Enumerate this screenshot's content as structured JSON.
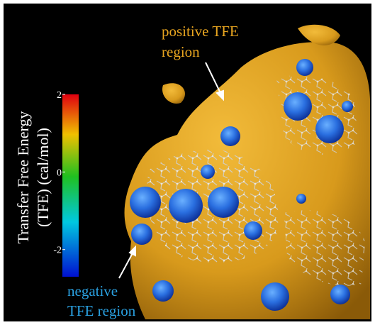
{
  "colorbar": {
    "title_lines": [
      "Transfer Free Energy",
      "(TFE) (cal/mol)"
    ],
    "lim": [
      -2.7,
      2
    ],
    "ticks": [
      2,
      0,
      -2
    ]
  },
  "annotations": {
    "positive": [
      "positive TFE",
      "region"
    ],
    "negative": [
      "negative",
      "TFE region"
    ]
  }
}
